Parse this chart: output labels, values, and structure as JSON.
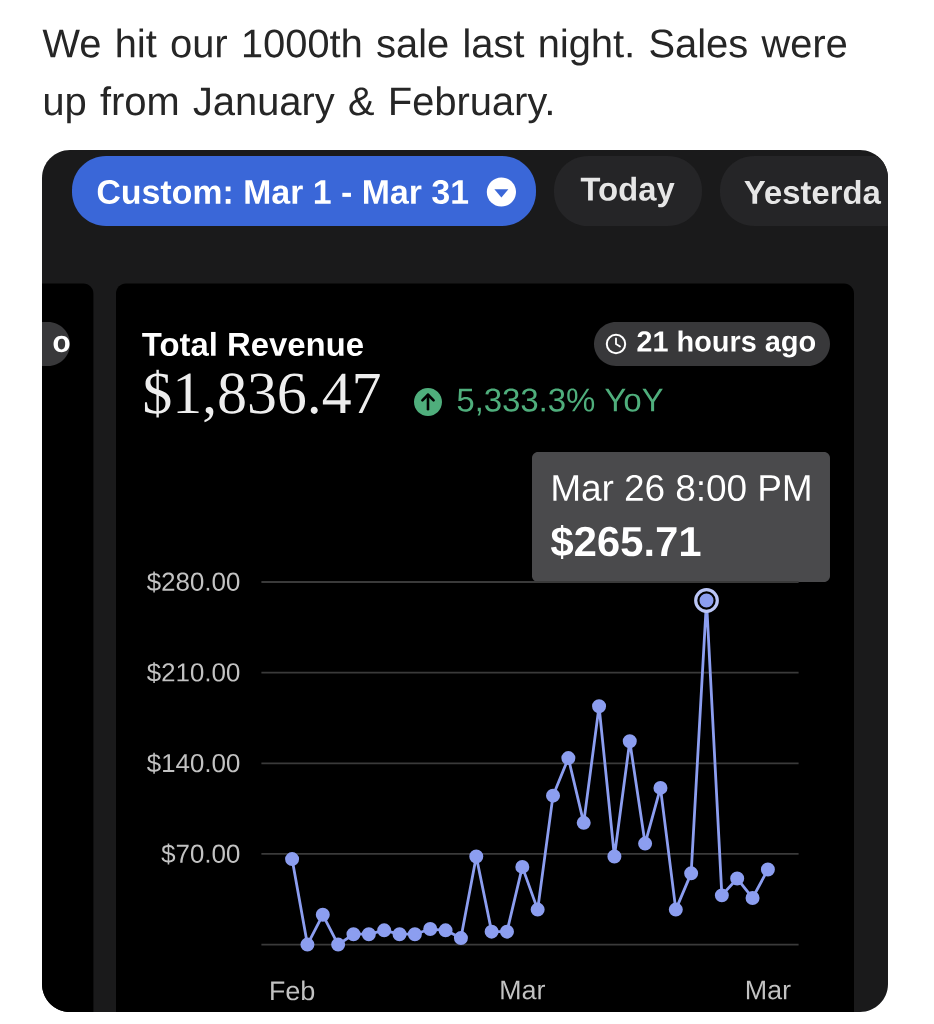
{
  "chart_data": {
    "type": "line",
    "title": "We hit our 1000th sale last night. Sales were up from January & February.",
    "subtitle": "Total Revenue",
    "categories": [
      "Feb",
      null,
      null,
      null,
      null,
      null,
      null,
      null,
      null,
      null,
      null,
      null,
      null,
      null,
      null,
      "Mar",
      null,
      null,
      null,
      null,
      null,
      null,
      null,
      null,
      null,
      null,
      null,
      null,
      null,
      null,
      null,
      "Mar"
    ],
    "series": [
      {
        "color": "#8c9ef0",
        "values": [
          66,
          0,
          23,
          0,
          8,
          8,
          11,
          8,
          8,
          12,
          11,
          5,
          68,
          10,
          10,
          60,
          27,
          115,
          144,
          94,
          184,
          68,
          157,
          78,
          121,
          27,
          55,
          265.71,
          38,
          51,
          36,
          58
        ]
      }
    ],
    "ylim": [
      0,
      280
    ],
    "yticks": [
      {
        "value": 0,
        "label": null
      },
      {
        "value": 70,
        "label": "$70.00"
      },
      {
        "value": 140,
        "label": "$140.00"
      },
      {
        "value": 210,
        "label": "$210.00"
      },
      {
        "value": 280,
        "label": "$280.00"
      }
    ],
    "grid": "y",
    "marker": "circle",
    "line_style": "solid",
    "annotations": [
      "Custom: Mar 1 - Mar 31",
      "Today",
      "Yesterda",
      "o",
      "$1,836.47",
      "5,333.3% YoY",
      "21 hours ago",
      "Mar 26 8:00 PM",
      "$265.71"
    ]
  }
}
